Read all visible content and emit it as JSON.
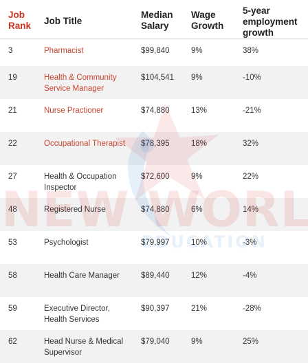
{
  "table": {
    "headers": {
      "rank": "Job Rank",
      "title": "Job Title",
      "salary": "Median Salary",
      "wage": "Wage Growth",
      "growth": "5-year employment growth"
    },
    "rows": [
      {
        "rank": "3",
        "title": "Pharmacist",
        "salary": "$99,840",
        "wage": "9%",
        "growth": "38%",
        "link": true
      },
      {
        "rank": "19",
        "title": "Health & Community Service Manager",
        "salary": "$104,541",
        "wage": "9%",
        "growth": "-10%",
        "link": true
      },
      {
        "rank": "21",
        "title": "Nurse Practioner",
        "salary": "$74,880",
        "wage": "13%",
        "growth": "-21%",
        "link": true
      },
      {
        "rank": "22",
        "title": "Occupational Therapist",
        "salary": "$78,395",
        "wage": "18%",
        "growth": "32%",
        "link": true
      },
      {
        "rank": "27",
        "title": "Health & Occupation Inspector",
        "salary": "$72,600",
        "wage": "9%",
        "growth": "22%",
        "link": false
      },
      {
        "rank": "48",
        "title": "Registered Nurse",
        "salary": "$74,880",
        "wage": "6%",
        "growth": "14%",
        "link": false
      },
      {
        "rank": "53",
        "title": "Psychologist",
        "salary": "$79,997",
        "wage": "10%",
        "growth": "-3%",
        "link": false
      },
      {
        "rank": "58",
        "title": "Health Care Manager",
        "salary": "$89,440",
        "wage": "12%",
        "growth": "-4%",
        "link": false
      },
      {
        "rank": "59",
        "title": "Executive Director, Health Services",
        "salary": "$90,397",
        "wage": "21%",
        "growth": "-28%",
        "link": false
      },
      {
        "rank": "62",
        "title": "Head Nurse & Medical Supervisor",
        "salary": "$79,040",
        "wage": "9%",
        "growth": "25%",
        "link": false
      }
    ]
  },
  "watermark": {
    "line1": "NEW WORLD",
    "line2": "EDUCATION"
  },
  "colors": {
    "accent": "#c8452f",
    "row_shade": "#f2f2f2"
  }
}
